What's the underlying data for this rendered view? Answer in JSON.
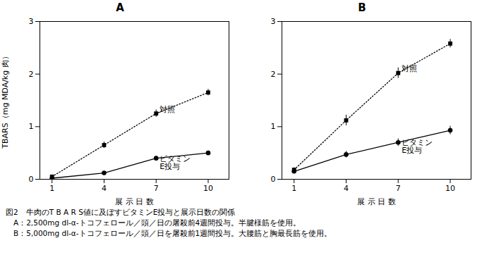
{
  "chart_data": [
    {
      "type": "line",
      "title": "A",
      "x": [
        1,
        4,
        7,
        10
      ],
      "xlabel": "展 示 日 数",
      "ylabel": "TBARS（mg MDA/kg 肉）",
      "xlim": [
        0.3,
        11.2
      ],
      "xticks": [
        1,
        4,
        7,
        10
      ],
      "ylim": [
        0,
        3
      ],
      "yticks": [
        0,
        1,
        2,
        3
      ],
      "series": [
        {
          "color": "#000000",
          "marker": "square",
          "line_style": "dotted",
          "values": [
            0.05,
            0.65,
            1.25,
            1.65
          ],
          "errors": [
            0.03,
            0.06,
            0.07,
            0.06
          ]
        },
        {
          "color": "#000000",
          "marker": "circle",
          "line_style": "solid",
          "values": [
            0.02,
            0.12,
            0.4,
            0.5
          ],
          "errors": [
            0.02,
            0.03,
            0.04,
            0.04
          ]
        }
      ],
      "annotations": [
        {
          "text": "対照",
          "x": 7.2,
          "y": 1.28
        },
        {
          "text": "ビタミン\nE投与",
          "x": 7.2,
          "y": 0.44
        }
      ]
    },
    {
      "type": "line",
      "title": "B",
      "x": [
        1,
        4,
        7,
        10
      ],
      "xlabel": "展 示 日 数",
      "xlim": [
        0.3,
        11.2
      ],
      "xticks": [
        1,
        4,
        7,
        10
      ],
      "ylim": [
        0,
        3
      ],
      "yticks": [
        0,
        1,
        2,
        3
      ],
      "series": [
        {
          "color": "#000000",
          "marker": "square",
          "line_style": "dotted",
          "values": [
            0.18,
            1.12,
            2.02,
            2.58
          ],
          "errors": [
            0.04,
            0.1,
            0.1,
            0.08
          ]
        },
        {
          "color": "#000000",
          "marker": "circle",
          "line_style": "solid",
          "values": [
            0.15,
            0.47,
            0.7,
            0.93
          ],
          "errors": [
            0.04,
            0.06,
            0.07,
            0.08
          ]
        }
      ],
      "annotations": [
        {
          "text": "対照",
          "x": 7.2,
          "y": 2.05
        },
        {
          "text": "ビタミン\nE投与",
          "x": 7.2,
          "y": 0.75
        }
      ]
    }
  ],
  "caption": [
    "図2　牛肉のT B A R S値に及ぼすビタミンE投与と展示日数の関係",
    "　A：2,500mg dl-α-トコフェロール／頭／日の屠殺前4週間投与。半腱様筋を使用。",
    "　B：5,000mg dl-α-トコフェロール／頭／日を屠殺前1週間投与。大腰筋と胸最長筋を使用。"
  ]
}
